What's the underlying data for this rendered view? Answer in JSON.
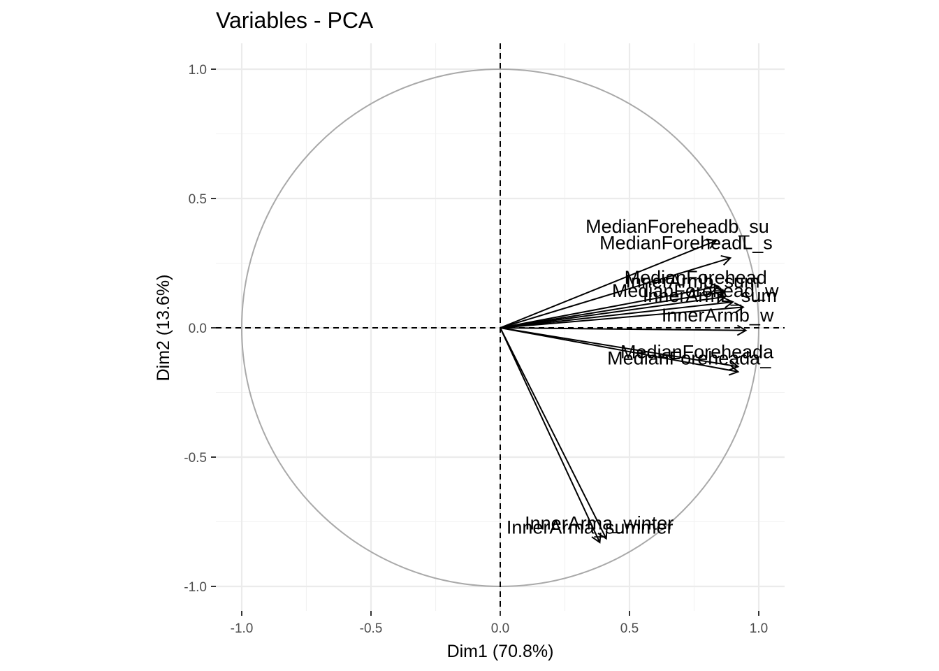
{
  "chart_data": {
    "type": "scatter",
    "title": "Variables - PCA",
    "xlabel": "Dim1 (70.8%)",
    "ylabel": "Dim2 (13.6%)",
    "xlim": [
      -1.0,
      1.1
    ],
    "ylim": [
      -1.09,
      1.09
    ],
    "x_ticks": [
      -1.0,
      -0.5,
      0.0,
      0.5,
      1.0
    ],
    "x_tick_labels": [
      "-1.0",
      "-0.5",
      "0.0",
      "0.5",
      "1.0"
    ],
    "y_ticks": [
      -1.0,
      -0.5,
      0.0,
      0.5,
      1.0
    ],
    "y_tick_labels": [
      "-1.0",
      "-0.5",
      "0.0",
      "0.5",
      "1.0"
    ],
    "grid": true,
    "correlation_circle": true,
    "variables": [
      {
        "label": "MedianForeheadb_summer",
        "x": 0.835,
        "y": 0.337
      },
      {
        "label": "MedianForeheadL_summer",
        "x": 0.89,
        "y": 0.27
      },
      {
        "label": "MedianForeheadb_winter",
        "x": 0.845,
        "y": 0.16
      },
      {
        "label": "InnerArmb_summer",
        "x": 0.87,
        "y": 0.14
      },
      {
        "label": "MedianForeheadL_winter",
        "x": 0.87,
        "y": 0.12
      },
      {
        "label": "InnerArmL_summer",
        "x": 0.9,
        "y": 0.1
      },
      {
        "label": "InnerArmb_winter",
        "x": 0.94,
        "y": 0.08
      },
      {
        "label": "InnerArmL_winter",
        "x": 0.95,
        "y": -0.01
      },
      {
        "label": "MedianForeheada_winter",
        "x": 0.92,
        "y": -0.15
      },
      {
        "label": "MedianForeheada_summer",
        "x": 0.92,
        "y": -0.17
      },
      {
        "label": "InnerArma_winter",
        "x": 0.41,
        "y": -0.815
      },
      {
        "label": "InnerArma_summer",
        "x": 0.385,
        "y": -0.83
      }
    ],
    "annotations": [
      {
        "text": "MedianForeheadb_su",
        "x": 0.33,
        "y": 0.392
      },
      {
        "text": "MedianForeheadL_s",
        "x": 0.384,
        "y": 0.328
      },
      {
        "text": "MedianForehead",
        "x": 0.48,
        "y": 0.195
      },
      {
        "text": "InnerArmb_sum",
        "x": 0.485,
        "y": 0.18
      },
      {
        "text": "MedianForehead_w",
        "x": 0.432,
        "y": 0.143
      },
      {
        "text": "InnerArmL_sum",
        "x": 0.551,
        "y": 0.125
      },
      {
        "text": "InnerArmb_w",
        "x": 0.624,
        "y": 0.048
      },
      {
        "text": "MedianForeheada",
        "x": 0.465,
        "y": -0.093
      },
      {
        "text": "MedianForeheada_",
        "x": 0.414,
        "y": -0.117
      },
      {
        "text": "InnerArma_winter",
        "x": 0.095,
        "y": -0.755
      },
      {
        "text": "InnerArma_summer",
        "x": 0.024,
        "y": -0.772
      }
    ]
  }
}
